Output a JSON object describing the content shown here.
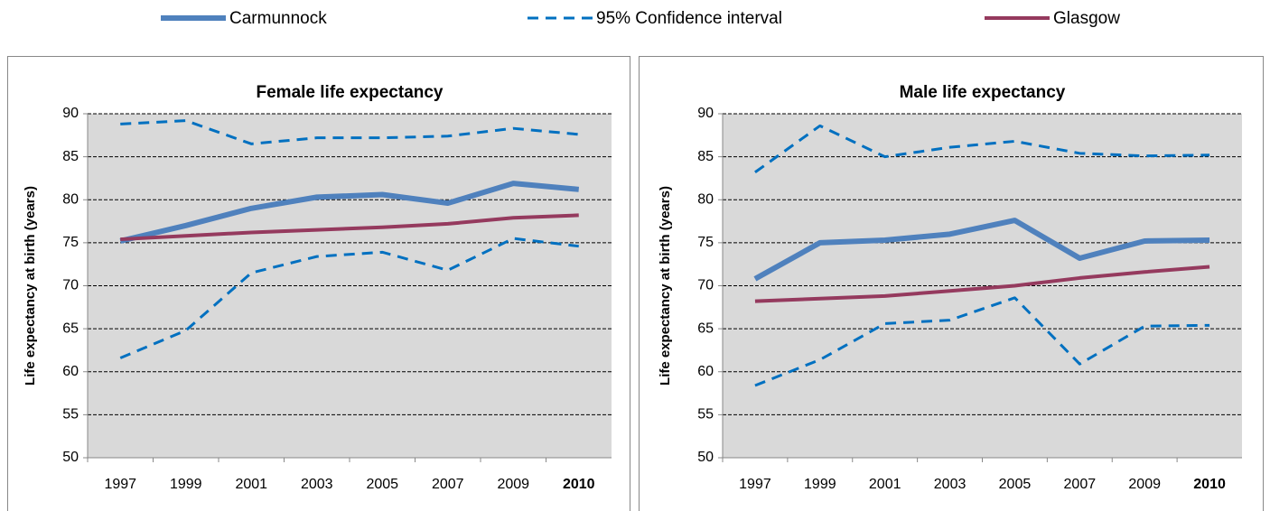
{
  "chart_data": [
    {
      "type": "line",
      "title": "Female life expectancy",
      "ylabel": "Life expectancy at birth (years)",
      "categories": [
        "1997",
        "1999",
        "2001",
        "2003",
        "2005",
        "2007",
        "2009",
        "2010"
      ],
      "ylim": [
        50,
        90
      ],
      "yticks": [
        50,
        55,
        60,
        65,
        70,
        75,
        80,
        85,
        90
      ],
      "grid": true,
      "series": [
        {
          "name": "Carmunnock",
          "color": "#4f81bd",
          "style": "solid",
          "values": [
            75.2,
            77.0,
            79.0,
            80.3,
            80.6,
            79.6,
            81.9,
            81.2
          ]
        },
        {
          "name": "95% Confidence interval",
          "color": "#0070c0",
          "style": "dashed",
          "values": [
            88.8,
            89.2,
            86.5,
            87.2,
            87.2,
            87.4,
            88.3,
            87.6
          ]
        },
        {
          "name": "95% Confidence interval",
          "color": "#0070c0",
          "style": "dashed",
          "values": [
            61.6,
            64.8,
            71.5,
            73.4,
            73.9,
            71.8,
            75.5,
            74.6
          ]
        },
        {
          "name": "Glasgow",
          "color": "#953a5e",
          "style": "solid",
          "values": [
            75.4,
            75.8,
            76.2,
            76.5,
            76.8,
            77.2,
            77.9,
            78.2
          ]
        }
      ]
    },
    {
      "type": "line",
      "title": "Male life expectancy",
      "ylabel": "Life expectancy at birth (years)",
      "categories": [
        "1997",
        "1999",
        "2001",
        "2003",
        "2005",
        "2007",
        "2009",
        "2010"
      ],
      "ylim": [
        50,
        90
      ],
      "yticks": [
        50,
        55,
        60,
        65,
        70,
        75,
        80,
        85,
        90
      ],
      "grid": true,
      "series": [
        {
          "name": "Carmunnock",
          "color": "#4f81bd",
          "style": "solid",
          "values": [
            70.8,
            75.0,
            75.3,
            76.0,
            77.6,
            73.2,
            75.2,
            75.3
          ]
        },
        {
          "name": "95% Confidence interval",
          "color": "#0070c0",
          "style": "dashed",
          "values": [
            83.2,
            88.6,
            85.0,
            86.1,
            86.8,
            85.4,
            85.1,
            85.2
          ]
        },
        {
          "name": "95% Confidence interval",
          "color": "#0070c0",
          "style": "dashed",
          "values": [
            58.4,
            61.4,
            65.6,
            66.0,
            68.6,
            60.9,
            65.3,
            65.4
          ]
        },
        {
          "name": "Glasgow",
          "color": "#953a5e",
          "style": "solid",
          "values": [
            68.2,
            68.5,
            68.8,
            69.4,
            70.0,
            70.9,
            71.6,
            72.2
          ]
        }
      ]
    }
  ]
}
